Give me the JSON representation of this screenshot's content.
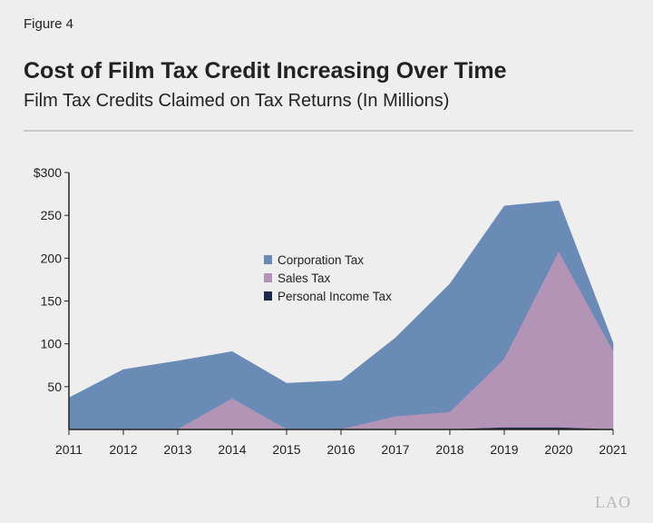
{
  "figure_label": "Figure 4",
  "logo": "LAO",
  "chart_data": {
    "type": "area",
    "stacked": true,
    "title": "Cost of Film Tax Credit Increasing Over Time",
    "subtitle": "Film Tax Credits Claimed on Tax Returns (In Millions)",
    "x": [
      "2011",
      "2012",
      "2013",
      "2014",
      "2015",
      "2016",
      "2017",
      "2018",
      "2019",
      "2020",
      "2021"
    ],
    "ylim": [
      0,
      300
    ],
    "yticks": [
      {
        "v": 50,
        "label": "50"
      },
      {
        "v": 100,
        "label": "100"
      },
      {
        "v": 150,
        "label": "150"
      },
      {
        "v": 200,
        "label": "200"
      },
      {
        "v": 250,
        "label": "250"
      },
      {
        "v": 300,
        "label": "$300"
      }
    ],
    "grid": false,
    "legend_position": "center",
    "series": [
      {
        "name": "Personal Income Tax",
        "color": "#1b2a4a",
        "values": [
          0,
          0,
          0,
          0,
          0,
          0,
          0,
          0,
          2,
          2,
          0
        ]
      },
      {
        "name": "Sales Tax",
        "color": "#b394b6",
        "values": [
          0,
          0,
          0,
          36,
          0,
          0,
          15,
          20,
          80,
          205,
          91
        ]
      },
      {
        "name": "Corporation Tax",
        "color": "#6a8bb5",
        "values": [
          37,
          70,
          80,
          55,
          54,
          57,
          92,
          150,
          179,
          60,
          10
        ]
      }
    ],
    "legend_order": [
      "Corporation Tax",
      "Sales Tax",
      "Personal Income Tax"
    ]
  }
}
